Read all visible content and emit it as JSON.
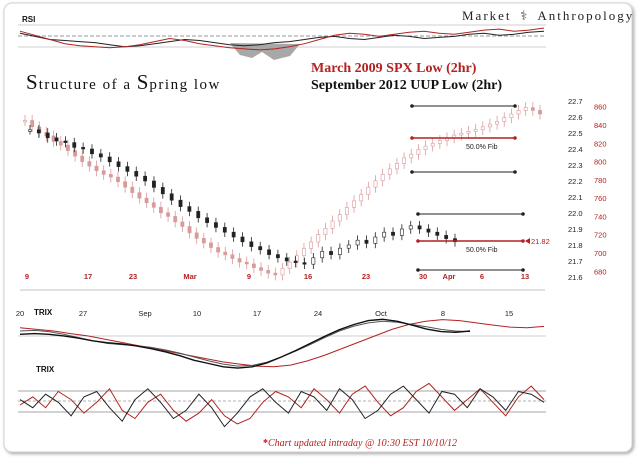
{
  "branding": {
    "left_word": "Market",
    "right_word": "Anthropology",
    "logo_icon": "helix-icon"
  },
  "title": {
    "l1": "S",
    "l2": "tructure of a ",
    "l3": "S",
    "l4": "pring",
    "l5": " low"
  },
  "subtitles": {
    "spx": "March 2009 SPX Low (2hr)",
    "uup": "September 2012 UUP Low (2hr)"
  },
  "footer": {
    "asterisk": "*",
    "text": "Chart updated intraday @ 10:30 EST 10/10/12"
  },
  "colors": {
    "spx": "#b22222",
    "uup": "#111111",
    "grid": "#bfbfbf",
    "spx_bars": "#d99a9a"
  },
  "chart_data": [
    {
      "type": "line",
      "name": "RSI panel",
      "label": "RSI",
      "series": [
        {
          "values": [
            58,
            55,
            52,
            51,
            50,
            49,
            47,
            45,
            46,
            48,
            50,
            52,
            51,
            49,
            47,
            46,
            47,
            49,
            50,
            52,
            54,
            55,
            53,
            52,
            54,
            56,
            55,
            53,
            54,
            55,
            57,
            58,
            56,
            57,
            59,
            60
          ]
        },
        {
          "values": [
            60,
            56,
            52,
            48,
            46,
            45,
            44,
            45,
            47,
            50,
            53,
            51,
            48,
            46,
            44,
            43,
            42,
            43,
            45,
            48,
            52,
            56,
            58,
            57,
            55,
            57,
            59,
            60,
            58,
            57,
            59,
            61,
            62,
            60,
            61,
            63
          ]
        }
      ]
    },
    {
      "type": "candlestick",
      "name": "Price panel",
      "annotations": {
        "fib_upper": "50.0% Fib",
        "fib_lower": "50.0% Fib",
        "price_tag": "21.82"
      },
      "x_ticks_spx": [
        "9",
        "17",
        "23",
        "Mar",
        "9",
        "16",
        "23",
        "30",
        "Apr",
        "6",
        "13"
      ],
      "x_ticks_uup": [
        "20",
        "27",
        "Sep",
        "10",
        "17",
        "24",
        "Oct",
        "8",
        "15"
      ],
      "uup_axis": {
        "ticks": [
          "22.7",
          "22.6",
          "22.5",
          "22.4",
          "22.3",
          "22.2",
          "22.1",
          "22.0",
          "21.9",
          "21.8",
          "21.7",
          "21.6"
        ],
        "ylim": [
          21.55,
          22.75
        ]
      },
      "spx_axis": {
        "ticks": [
          "860",
          "840",
          "820",
          "800",
          "780",
          "760",
          "740",
          "720",
          "700",
          "680"
        ],
        "ylim": [
          665,
          875
        ]
      },
      "spx_closes": [
        845,
        838,
        832,
        828,
        822,
        818,
        812,
        806,
        800,
        795,
        790,
        786,
        783,
        778,
        772,
        766,
        760,
        755,
        750,
        744,
        740,
        734,
        729,
        722,
        716,
        711,
        706,
        701,
        698,
        694,
        690,
        688,
        684,
        681,
        678,
        676,
        683,
        690,
        697,
        705,
        712,
        720,
        727,
        735,
        742,
        750,
        757,
        764,
        772,
        779,
        786,
        792,
        798,
        804,
        808,
        813,
        817,
        820,
        823,
        826,
        829,
        831,
        833,
        835,
        838,
        841,
        844,
        848,
        852,
        856,
        859,
        856,
        852
      ],
      "uup_closes": [
        22.52,
        22.5,
        22.47,
        22.45,
        22.44,
        22.41,
        22.4,
        22.37,
        22.35,
        22.32,
        22.29,
        22.26,
        22.23,
        22.2,
        22.16,
        22.12,
        22.08,
        22.04,
        22.01,
        21.97,
        21.94,
        21.91,
        21.88,
        21.85,
        21.82,
        21.79,
        21.77,
        21.74,
        21.72,
        21.7,
        21.69,
        21.68,
        21.72,
        21.76,
        21.74,
        21.78,
        21.8,
        21.83,
        21.81,
        21.85,
        21.88,
        21.86,
        21.9,
        21.92,
        21.9,
        21.88,
        21.86,
        21.84,
        21.82
      ]
    },
    {
      "type": "line",
      "name": "TRIX panel 1",
      "label": "TRIX",
      "series": [
        {
          "values": [
            0.3,
            0.25,
            0.2,
            0.12,
            0.05,
            -0.05,
            -0.15,
            -0.25,
            -0.35,
            -0.45,
            -0.55,
            -0.65,
            -0.75,
            -0.82,
            -0.88,
            -0.9,
            -0.85,
            -0.72,
            -0.55,
            -0.35,
            -0.15,
            0.05,
            0.25,
            0.4,
            0.5,
            0.55,
            0.52,
            0.45,
            0.38,
            0.32,
            0.3,
            0.34
          ]
        },
        {
          "values": [
            0.2,
            0.22,
            0.18,
            0.1,
            0.0,
            -0.1,
            -0.18,
            -0.22,
            -0.25,
            -0.3,
            -0.38,
            -0.48,
            -0.6,
            -0.72,
            -0.82,
            -0.88,
            -0.86,
            -0.76,
            -0.6,
            -0.42,
            -0.22,
            0.0,
            0.2,
            0.35,
            0.45,
            0.5,
            0.47,
            0.4,
            0.33,
            0.25,
            0.2,
            0.18
          ]
        },
        {
          "values": [
            0.1,
            0.12,
            0.1,
            0.05,
            -0.02,
            -0.1,
            -0.16,
            -0.2,
            -0.26,
            -0.34,
            -0.44,
            -0.56,
            -0.7,
            -0.8,
            -0.9,
            -0.94,
            -0.9,
            -0.78,
            -0.6,
            -0.4,
            -0.18,
            0.04,
            0.24,
            0.4,
            0.52,
            0.56,
            0.5,
            0.38,
            0.26,
            0.18,
            0.16,
            0.2
          ]
        }
      ]
    },
    {
      "type": "line",
      "name": "TRIX panel 2",
      "label": "TRIX",
      "series": [
        {
          "values": [
            0,
            0.3,
            -0.1,
            0.5,
            0.2,
            -0.3,
            0.1,
            0.6,
            -0.2,
            -0.5,
            0.1,
            0.4,
            -0.2,
            -0.6,
            -0.3,
            0.2,
            -0.4,
            -0.7,
            -0.5,
            0.1,
            0.5,
            0.3,
            -0.1,
            0.6,
            0.2,
            -0.3,
            0.4,
            0.7,
            0.1,
            -0.4,
            -0.1,
            0.5,
            0.8,
            0.3,
            -0.2,
            0.2,
            0.6,
            0.1,
            -0.4,
            0.3,
            0.7,
            0.2
          ]
        },
        {
          "values": [
            0.2,
            -0.1,
            0.4,
            0.1,
            -0.4,
            0.3,
            0.5,
            -0.1,
            -0.6,
            0.2,
            0.6,
            0.1,
            -0.5,
            -0.2,
            0.4,
            -0.1,
            -0.8,
            -0.3,
            0.3,
            0.6,
            0.1,
            -0.3,
            0.5,
            0.3,
            -0.2,
            0.6,
            0.2,
            -0.5,
            -0.2,
            0.4,
            0.7,
            0.2,
            -0.3,
            0.5,
            0.4,
            -0.1,
            0.6,
            0.3,
            -0.2,
            0.5,
            0.4,
            0.1
          ]
        }
      ]
    }
  ]
}
